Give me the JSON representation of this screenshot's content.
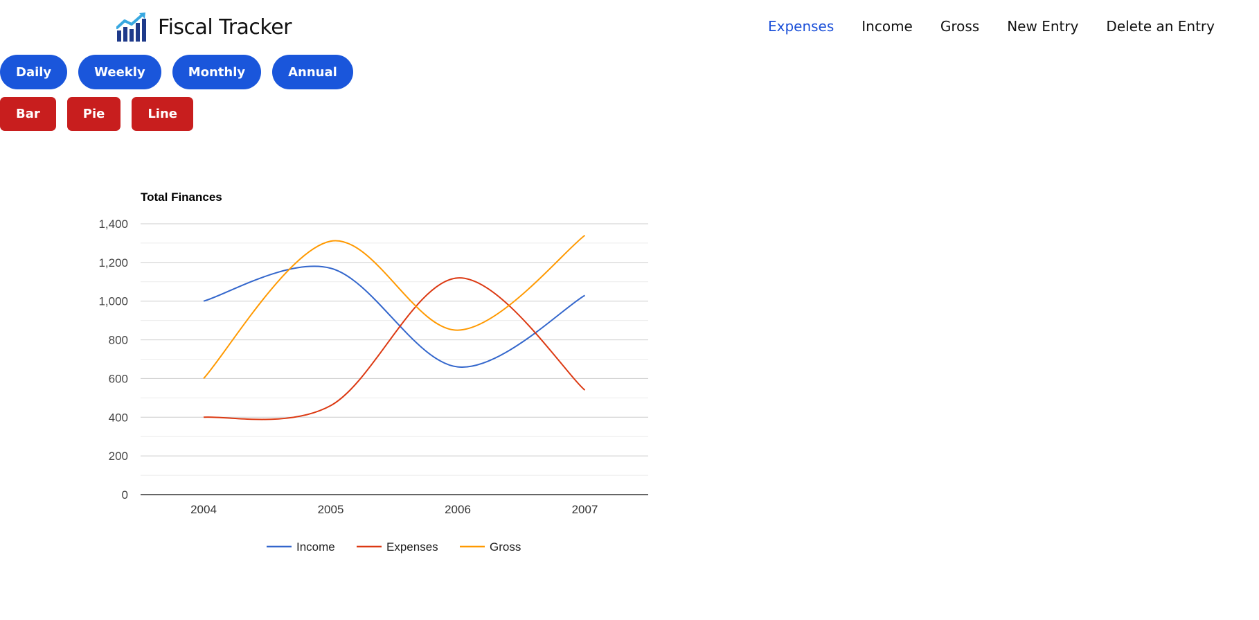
{
  "app": {
    "title": "Fiscal Tracker",
    "logo_icon": "rising-bar-chart-icon"
  },
  "nav": {
    "items": [
      {
        "label": "Expenses",
        "active": true
      },
      {
        "label": "Income",
        "active": false
      },
      {
        "label": "Gross",
        "active": false
      },
      {
        "label": "New Entry",
        "active": false
      },
      {
        "label": "Delete an Entry",
        "active": false
      }
    ],
    "active_color": "#1a4fd8"
  },
  "period_buttons": [
    "Daily",
    "Weekly",
    "Monthly",
    "Annual"
  ],
  "chart_type_buttons": [
    "Bar",
    "Pie",
    "Line"
  ],
  "colors": {
    "period_button": "#1a56db",
    "chart_type_button": "#c81e1e"
  },
  "chart_data": {
    "type": "line",
    "title": "Total Finances",
    "xlabel": "",
    "ylabel": "",
    "categories": [
      "2004",
      "2005",
      "2006",
      "2007"
    ],
    "ylim": [
      0,
      1400
    ],
    "yticks": [
      0,
      200,
      400,
      600,
      800,
      1000,
      1200,
      1400
    ],
    "ytick_labels": [
      "0",
      "200",
      "400",
      "600",
      "800",
      "1,000",
      "1,200",
      "1,400"
    ],
    "grid": true,
    "curve": "smooth",
    "legend_position": "bottom",
    "series": [
      {
        "name": "Income",
        "values": [
          1000,
          1170,
          660,
          1030
        ],
        "color": "#3366cc"
      },
      {
        "name": "Expenses",
        "values": [
          400,
          460,
          1120,
          540
        ],
        "color": "#dc3912"
      },
      {
        "name": "Gross",
        "values": [
          600,
          1310,
          850,
          1340
        ],
        "color": "#ff9900"
      }
    ]
  }
}
